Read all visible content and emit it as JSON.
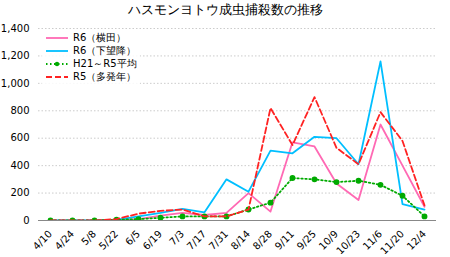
{
  "chart_data": {
    "type": "line",
    "title": "ハスモンヨトウ成虫捕殺数の推移",
    "categories": [
      "4/10",
      "4/24",
      "5/8",
      "5/22",
      "6/5",
      "6/19",
      "7/3",
      "7/17",
      "7/31",
      "8/14",
      "8/28",
      "9/11",
      "9/25",
      "10/9",
      "10/23",
      "11/6",
      "11/20",
      "12/4"
    ],
    "series": [
      {
        "name": "R6（横田）",
        "color": "#FF69B4",
        "line_style": "solid",
        "values": [
          0,
          0,
          0,
          5,
          10,
          35,
          55,
          40,
          55,
          200,
          65,
          570,
          540,
          270,
          150,
          700,
          400,
          100
        ]
      },
      {
        "name": "R6（下望降）",
        "color": "#00BFFF",
        "line_style": "solid",
        "values": [
          0,
          0,
          0,
          5,
          30,
          55,
          85,
          60,
          300,
          210,
          510,
          490,
          610,
          600,
          410,
          1160,
          120,
          80
        ]
      },
      {
        "name": "H21～R5平均",
        "color": "#00AA00",
        "line_style": "dotted",
        "marker": "circle",
        "values": [
          0,
          0,
          0,
          5,
          10,
          20,
          30,
          30,
          30,
          80,
          130,
          310,
          300,
          280,
          290,
          260,
          180,
          30
        ]
      },
      {
        "name": "R5（多発年）",
        "color": "#FF2222",
        "line_style": "dashed",
        "values": [
          0,
          0,
          0,
          10,
          50,
          70,
          80,
          30,
          30,
          80,
          820,
          550,
          900,
          530,
          410,
          790,
          580,
          110
        ]
      }
    ],
    "ylim": [
      0,
      1400
    ],
    "yticks": [
      0,
      200,
      400,
      600,
      800,
      {
        "value": 1000,
        "label": "1,000"
      },
      {
        "value": 1200,
        "label": "1,200"
      },
      {
        "value": 1400,
        "label": "1,400"
      }
    ],
    "grid": true,
    "legend": "upper left"
  }
}
